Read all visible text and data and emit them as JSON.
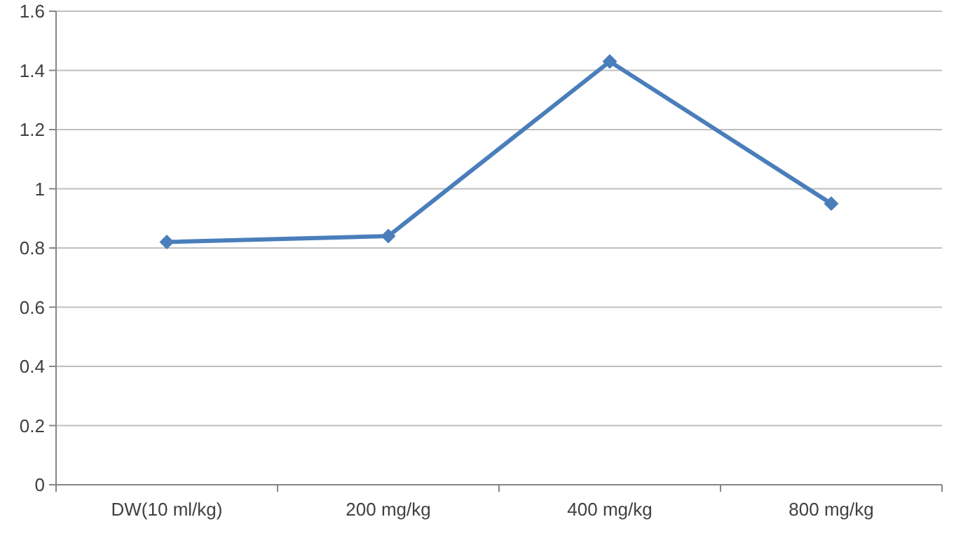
{
  "chart_data": {
    "type": "line",
    "categories": [
      "DW(10 ml/kg)",
      "200 mg/kg",
      "400 mg/kg",
      "800 mg/kg"
    ],
    "series": [
      {
        "color": "#4a7ebb",
        "values": [
          0.82,
          0.84,
          1.43,
          0.95
        ]
      }
    ],
    "ylim": [
      0,
      1.6
    ],
    "yticks": [
      0,
      0.2,
      0.4,
      0.6,
      0.8,
      1,
      1.2,
      1.4,
      1.6
    ],
    "grid": "y",
    "marker": "diamond",
    "line_style": "solid"
  }
}
